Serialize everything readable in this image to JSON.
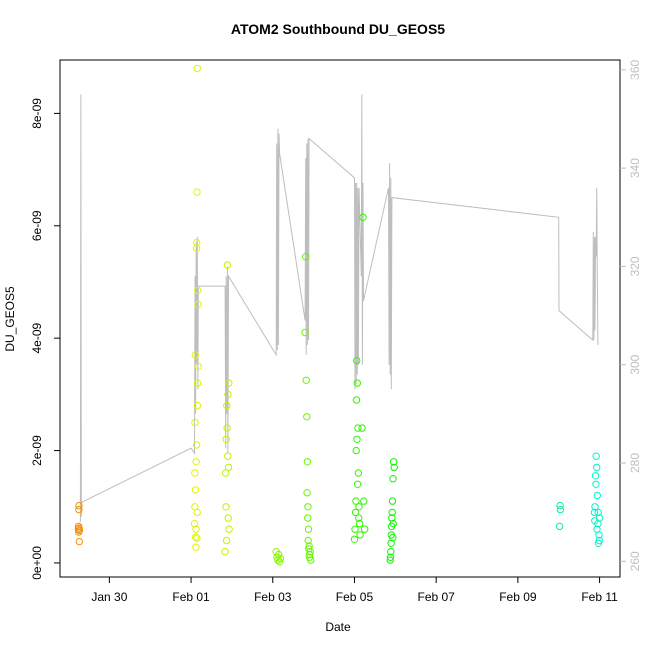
{
  "chart_data": {
    "type": "scatter",
    "title": "ATOM2 Southbound DU_GEOS5",
    "xlabel": "Date",
    "ylabel": "DU_GEOS5",
    "x_range_days": [
      "2017-01-28T19:00",
      "2017-02-11T12:00"
    ],
    "ylim": [
      -2.5e-10,
      8.95e-09
    ],
    "y_ticks": [
      0,
      2e-09,
      4e-09,
      6e-09,
      8e-09
    ],
    "y_tick_labels": [
      "0e+00",
      "2e-09",
      "4e-09",
      "6e-09",
      "8e-09"
    ],
    "x_ticks": [
      "2017-01-30",
      "2017-02-01",
      "2017-02-03",
      "2017-02-05",
      "2017-02-07",
      "2017-02-09",
      "2017-02-11"
    ],
    "x_tick_labels": [
      "Jan 30",
      "Feb 01",
      "Feb 03",
      "Feb 05",
      "Feb 07",
      "Feb 09",
      "Feb 11"
    ],
    "y2lim": [
      256.8,
      362.0
    ],
    "y2_ticks": [
      260,
      280,
      300,
      320,
      340,
      360
    ],
    "y2_tick_labels": [
      "260",
      "280",
      "300",
      "320",
      "340",
      "360"
    ],
    "y2_color": "#bebebe",
    "marker": "open-circle",
    "color_by": "time (orange to cyan)",
    "points": [
      {
        "x": "2017-01-29T05:50",
        "y": 6e-10
      },
      {
        "x": "2017-01-29T05:55",
        "y": 6.5e-10
      },
      {
        "x": "2017-01-29T06:00",
        "y": 5.5e-10
      },
      {
        "x": "2017-01-29T06:05",
        "y": 9.5e-10
      },
      {
        "x": "2017-01-29T06:10",
        "y": 1.02e-09
      },
      {
        "x": "2017-01-29T06:15",
        "y": 6.2e-10
      },
      {
        "x": "2017-01-29T06:20",
        "y": 3.8e-10
      },
      {
        "x": "2017-01-29T06:25",
        "y": 5.8e-10
      },
      {
        "x": "2017-02-01T02:00",
        "y": 7e-10
      },
      {
        "x": "2017-02-01T02:10",
        "y": 1.6e-09
      },
      {
        "x": "2017-02-01T02:20",
        "y": 2.5e-09
      },
      {
        "x": "2017-02-01T02:30",
        "y": 3.7e-09
      },
      {
        "x": "2017-02-01T02:40",
        "y": 4.6e-10
      },
      {
        "x": "2017-02-01T02:50",
        "y": 2.8e-10
      },
      {
        "x": "2017-02-01T03:00",
        "y": 1.8e-09
      },
      {
        "x": "2017-02-01T03:10",
        "y": 5.6e-09
      },
      {
        "x": "2017-02-01T03:20",
        "y": 5.7e-09
      },
      {
        "x": "2017-02-01T03:30",
        "y": 6.6e-09
      },
      {
        "x": "2017-02-01T03:40",
        "y": 8.8e-09
      },
      {
        "x": "2017-02-01T03:50",
        "y": 3.2e-09
      },
      {
        "x": "2017-02-01T04:00",
        "y": 4.6e-09
      },
      {
        "x": "2017-02-01T04:10",
        "y": 3.5e-09
      },
      {
        "x": "2017-02-01T02:15",
        "y": 1e-09
      },
      {
        "x": "2017-02-01T02:35",
        "y": 1.3e-09
      },
      {
        "x": "2017-02-01T02:55",
        "y": 6e-10
      },
      {
        "x": "2017-02-01T03:15",
        "y": 2.1e-09
      },
      {
        "x": "2017-02-01T03:25",
        "y": 4.4e-10
      },
      {
        "x": "2017-02-01T03:35",
        "y": 9e-10
      },
      {
        "x": "2017-02-01T03:45",
        "y": 2.8e-09
      },
      {
        "x": "2017-02-01T03:55",
        "y": 4.85e-09
      },
      {
        "x": "2017-02-01T20:00",
        "y": 2e-10
      },
      {
        "x": "2017-02-01T20:20",
        "y": 1.6e-09
      },
      {
        "x": "2017-02-01T20:40",
        "y": 2.2e-09
      },
      {
        "x": "2017-02-01T21:00",
        "y": 2.8e-09
      },
      {
        "x": "2017-02-01T21:20",
        "y": 5.3e-09
      },
      {
        "x": "2017-02-01T21:40",
        "y": 3e-09
      },
      {
        "x": "2017-02-01T22:00",
        "y": 1.7e-09
      },
      {
        "x": "2017-02-01T22:20",
        "y": 6e-10
      },
      {
        "x": "2017-02-01T20:30",
        "y": 1e-09
      },
      {
        "x": "2017-02-01T20:50",
        "y": 4e-10
      },
      {
        "x": "2017-02-01T21:10",
        "y": 2.4e-09
      },
      {
        "x": "2017-02-01T21:30",
        "y": 1.9e-09
      },
      {
        "x": "2017-02-01T21:50",
        "y": 8e-10
      },
      {
        "x": "2017-02-01T22:10",
        "y": 3.2e-09
      },
      {
        "x": "2017-02-03T02:00",
        "y": 2e-10
      },
      {
        "x": "2017-02-03T02:30",
        "y": 1e-10
      },
      {
        "x": "2017-02-03T03:00",
        "y": 5e-11
      },
      {
        "x": "2017-02-03T03:30",
        "y": 1.5e-10
      },
      {
        "x": "2017-02-03T04:00",
        "y": 2e-11
      },
      {
        "x": "2017-02-03T04:30",
        "y": 8e-11
      },
      {
        "x": "2017-02-03T19:00",
        "y": 4.1e-09
      },
      {
        "x": "2017-02-03T19:20",
        "y": 5.45e-09
      },
      {
        "x": "2017-02-03T19:40",
        "y": 3.25e-09
      },
      {
        "x": "2017-02-03T20:00",
        "y": 2.6e-09
      },
      {
        "x": "2017-02-03T20:20",
        "y": 1.8e-09
      },
      {
        "x": "2017-02-03T20:40",
        "y": 1e-09
      },
      {
        "x": "2017-02-03T21:00",
        "y": 6e-10
      },
      {
        "x": "2017-02-03T21:20",
        "y": 3e-10
      },
      {
        "x": "2017-02-03T21:40",
        "y": 1e-10
      },
      {
        "x": "2017-02-03T22:00",
        "y": 2e-10
      },
      {
        "x": "2017-02-03T22:20",
        "y": 5e-11
      },
      {
        "x": "2017-02-03T20:10",
        "y": 1.25e-09
      },
      {
        "x": "2017-02-03T20:30",
        "y": 8e-10
      },
      {
        "x": "2017-02-03T20:50",
        "y": 4e-10
      },
      {
        "x": "2017-02-03T21:10",
        "y": 2.5e-10
      },
      {
        "x": "2017-02-03T21:30",
        "y": 1.5e-10
      },
      {
        "x": "2017-02-05T00:00",
        "y": 4.2e-10
      },
      {
        "x": "2017-02-05T00:20",
        "y": 6e-10
      },
      {
        "x": "2017-02-05T00:40",
        "y": 9e-10
      },
      {
        "x": "2017-02-05T01:00",
        "y": 2e-09
      },
      {
        "x": "2017-02-05T01:20",
        "y": 3.6e-09
      },
      {
        "x": "2017-02-05T01:40",
        "y": 3.2e-09
      },
      {
        "x": "2017-02-05T02:00",
        "y": 2.4e-09
      },
      {
        "x": "2017-02-05T02:20",
        "y": 1.6e-09
      },
      {
        "x": "2017-02-05T02:40",
        "y": 1e-09
      },
      {
        "x": "2017-02-05T03:00",
        "y": 7e-10
      },
      {
        "x": "2017-02-05T03:20",
        "y": 5e-10
      },
      {
        "x": "2017-02-05T00:50",
        "y": 1.1e-09
      },
      {
        "x": "2017-02-05T01:10",
        "y": 2.9e-09
      },
      {
        "x": "2017-02-05T01:30",
        "y": 2.2e-09
      },
      {
        "x": "2017-02-05T01:50",
        "y": 1.4e-09
      },
      {
        "x": "2017-02-05T02:30",
        "y": 8e-10
      },
      {
        "x": "2017-02-05T04:30",
        "y": 2.4e-09
      },
      {
        "x": "2017-02-05T05:00",
        "y": 6.15e-09
      },
      {
        "x": "2017-02-05T05:30",
        "y": 1.1e-09
      },
      {
        "x": "2017-02-05T06:00",
        "y": 6e-10
      },
      {
        "x": "2017-02-05T21:00",
        "y": 5e-11
      },
      {
        "x": "2017-02-05T21:20",
        "y": 2e-10
      },
      {
        "x": "2017-02-05T21:40",
        "y": 5e-10
      },
      {
        "x": "2017-02-05T22:00",
        "y": 8e-10
      },
      {
        "x": "2017-02-05T22:20",
        "y": 1.1e-09
      },
      {
        "x": "2017-02-05T22:40",
        "y": 1.5e-09
      },
      {
        "x": "2017-02-05T23:00",
        "y": 1.8e-09
      },
      {
        "x": "2017-02-05T23:20",
        "y": 1.7e-09
      },
      {
        "x": "2017-02-05T21:10",
        "y": 1e-10
      },
      {
        "x": "2017-02-05T21:30",
        "y": 3.5e-10
      },
      {
        "x": "2017-02-05T21:50",
        "y": 6.5e-10
      },
      {
        "x": "2017-02-05T22:10",
        "y": 9e-10
      },
      {
        "x": "2017-02-05T22:30",
        "y": 4.5e-10
      },
      {
        "x": "2017-02-05T22:50",
        "y": 7e-10
      },
      {
        "x": "2017-02-10T00:30",
        "y": 6.5e-10
      },
      {
        "x": "2017-02-10T00:50",
        "y": 1.02e-09
      },
      {
        "x": "2017-02-10T01:00",
        "y": 9.5e-10
      },
      {
        "x": "2017-02-10T21:00",
        "y": 9e-10
      },
      {
        "x": "2017-02-10T21:20",
        "y": 1e-09
      },
      {
        "x": "2017-02-10T21:40",
        "y": 1.55e-09
      },
      {
        "x": "2017-02-10T22:00",
        "y": 1.9e-09
      },
      {
        "x": "2017-02-10T22:20",
        "y": 1.7e-09
      },
      {
        "x": "2017-02-10T22:40",
        "y": 1.2e-09
      },
      {
        "x": "2017-02-10T23:00",
        "y": 7e-10
      },
      {
        "x": "2017-02-10T23:20",
        "y": 3.5e-10
      },
      {
        "x": "2017-02-10T23:40",
        "y": 5e-10
      },
      {
        "x": "2017-02-11T00:00",
        "y": 8e-10
      },
      {
        "x": "2017-02-10T21:10",
        "y": 7.5e-10
      },
      {
        "x": "2017-02-10T21:50",
        "y": 1.4e-09
      },
      {
        "x": "2017-02-10T22:30",
        "y": 6e-10
      },
      {
        "x": "2017-02-10T23:10",
        "y": 9e-10
      },
      {
        "x": "2017-02-10T23:50",
        "y": 4e-10
      }
    ],
    "y2_line": [
      {
        "x": "2017-01-29T07:00",
        "y": 268
      },
      {
        "x": "2017-01-29T07:15",
        "y": 355
      },
      {
        "x": "2017-01-29T07:30",
        "y": 269
      },
      {
        "x": "2017-01-29T07:45",
        "y": 272
      },
      {
        "x": "2017-02-01T00:00",
        "y": 283
      },
      {
        "x": "2017-02-01T02:00",
        "y": 282
      },
      {
        "x": "2017-02-01T02:20",
        "y": 318
      },
      {
        "x": "2017-02-01T02:40",
        "y": 290
      },
      {
        "x": "2017-02-01T03:00",
        "y": 325
      },
      {
        "x": "2017-02-01T03:20",
        "y": 300
      },
      {
        "x": "2017-02-01T03:40",
        "y": 326
      },
      {
        "x": "2017-02-01T04:00",
        "y": 295
      },
      {
        "x": "2017-02-01T04:20",
        "y": 316
      },
      {
        "x": "2017-02-01T20:00",
        "y": 316
      },
      {
        "x": "2017-02-01T20:20",
        "y": 283
      },
      {
        "x": "2017-02-01T20:40",
        "y": 318
      },
      {
        "x": "2017-02-01T21:00",
        "y": 290
      },
      {
        "x": "2017-02-01T21:20",
        "y": 320
      },
      {
        "x": "2017-02-01T21:40",
        "y": 282
      },
      {
        "x": "2017-02-01T22:00",
        "y": 318
      },
      {
        "x": "2017-02-03T02:00",
        "y": 302
      },
      {
        "x": "2017-02-03T02:20",
        "y": 345
      },
      {
        "x": "2017-02-03T02:40",
        "y": 303
      },
      {
        "x": "2017-02-03T03:00",
        "y": 348
      },
      {
        "x": "2017-02-03T03:20",
        "y": 304
      },
      {
        "x": "2017-02-03T03:40",
        "y": 347
      },
      {
        "x": "2017-02-03T04:00",
        "y": 343
      },
      {
        "x": "2017-02-03T19:00",
        "y": 309
      },
      {
        "x": "2017-02-03T19:20",
        "y": 342
      },
      {
        "x": "2017-02-03T19:40",
        "y": 302
      },
      {
        "x": "2017-02-03T20:00",
        "y": 345
      },
      {
        "x": "2017-02-03T20:20",
        "y": 304
      },
      {
        "x": "2017-02-03T20:40",
        "y": 346
      },
      {
        "x": "2017-02-03T21:00",
        "y": 305
      },
      {
        "x": "2017-02-03T21:20",
        "y": 346
      },
      {
        "x": "2017-02-05T00:00",
        "y": 338
      },
      {
        "x": "2017-02-05T00:20",
        "y": 295
      },
      {
        "x": "2017-02-05T00:40",
        "y": 337
      },
      {
        "x": "2017-02-05T01:00",
        "y": 296
      },
      {
        "x": "2017-02-05T01:20",
        "y": 337
      },
      {
        "x": "2017-02-05T01:40",
        "y": 298
      },
      {
        "x": "2017-02-05T02:00",
        "y": 336
      },
      {
        "x": "2017-02-05T02:20",
        "y": 300
      },
      {
        "x": "2017-02-05T02:40",
        "y": 336
      },
      {
        "x": "2017-02-05T04:00",
        "y": 318
      },
      {
        "x": "2017-02-05T04:20",
        "y": 355
      },
      {
        "x": "2017-02-05T04:40",
        "y": 300
      },
      {
        "x": "2017-02-05T05:00",
        "y": 337
      },
      {
        "x": "2017-02-05T05:20",
        "y": 313
      },
      {
        "x": "2017-02-05T20:00",
        "y": 336
      },
      {
        "x": "2017-02-05T20:20",
        "y": 300
      },
      {
        "x": "2017-02-05T20:40",
        "y": 341
      },
      {
        "x": "2017-02-05T21:00",
        "y": 298
      },
      {
        "x": "2017-02-05T21:20",
        "y": 338
      },
      {
        "x": "2017-02-05T21:40",
        "y": 295
      },
      {
        "x": "2017-02-05T22:00",
        "y": 334
      },
      {
        "x": "2017-02-10T00:00",
        "y": 330
      },
      {
        "x": "2017-02-10T00:10",
        "y": 311
      },
      {
        "x": "2017-02-10T20:00",
        "y": 305
      },
      {
        "x": "2017-02-10T20:20",
        "y": 327
      },
      {
        "x": "2017-02-10T20:40",
        "y": 305
      },
      {
        "x": "2017-02-10T21:00",
        "y": 326
      },
      {
        "x": "2017-02-10T21:20",
        "y": 307
      },
      {
        "x": "2017-02-10T21:40",
        "y": 326
      },
      {
        "x": "2017-02-10T22:00",
        "y": 322
      },
      {
        "x": "2017-02-10T22:20",
        "y": 336
      },
      {
        "x": "2017-02-10T22:40",
        "y": 319
      },
      {
        "x": "2017-02-10T23:00",
        "y": 304
      }
    ]
  }
}
